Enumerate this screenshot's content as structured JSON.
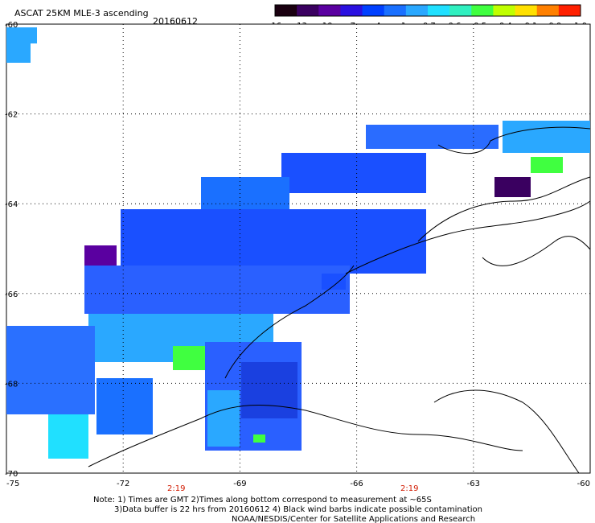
{
  "header": {
    "product": "ASCAT 25KM MLE-3 ascending",
    "date": "20160612"
  },
  "colorbar": {
    "labels": [
      "-16",
      "-13",
      "-10",
      "-7",
      "-4",
      "-1",
      "-0.7",
      "-0.6",
      "-0.5",
      "-0.4",
      "-0.1",
      "0.0",
      "1.0"
    ],
    "colors": [
      "#1a0010",
      "#3a0060",
      "#5a00a0",
      "#2a10e0",
      "#0040ff",
      "#1a70ff",
      "#2aa8ff",
      "#20e0ff",
      "#30f0c0",
      "#40ff40",
      "#c0ff00",
      "#ffe000",
      "#ff8000",
      "#ff2000"
    ]
  },
  "axes": {
    "lat_labels": [
      "-60",
      "-62",
      "-64",
      "-66",
      "-68",
      "-70"
    ],
    "lon_labels": [
      "-75",
      "-72",
      "-69",
      "-66",
      "-63",
      "-60"
    ],
    "lat_range": [
      -70,
      -60
    ],
    "lon_range": [
      -75,
      -60
    ]
  },
  "pass_times": [
    "2:19",
    "2:19"
  ],
  "notes": [
    "Note: 1) Times are GMT 2)Times along bottom correspond to measurement at ~65S",
    "3)Data buffer is 22 hrs from 20160612 4) Black wind barbs indicate possible contamination",
    "NOAA/NESDIS/Center for Satellite Applications and Research"
  ]
}
